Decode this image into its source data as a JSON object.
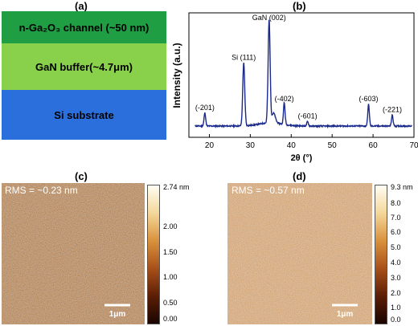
{
  "labels": {
    "a": "(a)",
    "b": "(b)",
    "c": "(c)",
    "d": "(d)"
  },
  "layers": {
    "top": {
      "label": "n-Ga₂O₃ channel (~50 nm)",
      "color": "#1f9e44"
    },
    "mid": {
      "label": "GaN buffer(~4.7μm)",
      "color": "#8ad14b"
    },
    "bot": {
      "label": "Si substrate",
      "color": "#2a6fdb"
    }
  },
  "chart_data": [
    {
      "type": "line",
      "xlabel": "2θ (°)",
      "ylabel": "Intensity (a.u.)",
      "xlim": [
        15,
        70
      ],
      "xticks": [
        20,
        30,
        40,
        50,
        60,
        70
      ],
      "line_color": "#1a2a8c",
      "peaks": [
        {
          "label": "(-201)",
          "x": 18.9,
          "h": 0.12
        },
        {
          "label": "Si (111)",
          "x": 28.4,
          "h": 0.58
        },
        {
          "label": "GaN (002)",
          "x": 34.6,
          "h": 0.95
        },
        {
          "label": "(-402)",
          "x": 38.3,
          "h": 0.2
        },
        {
          "label": "(-601)",
          "x": 44.0,
          "h": 0.04
        },
        {
          "label": "(-603)",
          "x": 58.9,
          "h": 0.2
        },
        {
          "label": "(-221)",
          "x": 64.7,
          "h": 0.1
        }
      ]
    },
    {
      "type": "heatmap",
      "annotation": "RMS = ~0.23 nm",
      "colorbar_max_label": "2.74 nm",
      "colorbar_ticks": [
        "2.00",
        "1.50",
        "1.00",
        "0.50",
        "0.00"
      ],
      "scalebar": "1μm"
    },
    {
      "type": "heatmap",
      "annotation": "RMS = ~0.57 nm",
      "colorbar_max_label": "9.3 nm",
      "colorbar_ticks": [
        "8.0",
        "7.0",
        "6.0",
        "5.0",
        "4.0",
        "3.0",
        "2.0",
        "1.0",
        "0.0"
      ],
      "scalebar": "1μm"
    }
  ]
}
